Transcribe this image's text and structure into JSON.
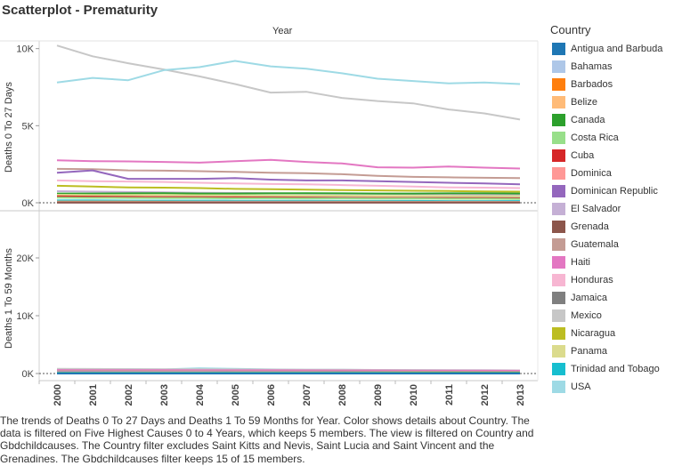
{
  "title": "Scatterplot - Prematurity",
  "column_header": "Year",
  "legend_title": "Country",
  "caption": "The trends of Deaths 0 To 27 Days and Deaths 1 To 59 Months for Year.  Color shows details about Country. The data is filtered on Five Highest Causes 0 to 4 Years, which keeps 5 members. The view is filtered on Country and Gbdchildcauses. The Country filter excludes Saint Kitts and Nevis, Saint Lucia and Saint Vincent and the Grenadines. The Gbdchildcauses filter keeps 15 of 15 members.",
  "countries": [
    {
      "name": "Antigua and Barbuda",
      "color": "#1f77b4"
    },
    {
      "name": "Bahamas",
      "color": "#aec7e8"
    },
    {
      "name": "Barbados",
      "color": "#ff7f0e"
    },
    {
      "name": "Belize",
      "color": "#ffbb78"
    },
    {
      "name": "Canada",
      "color": "#2ca02c"
    },
    {
      "name": "Costa Rica",
      "color": "#98df8a"
    },
    {
      "name": "Cuba",
      "color": "#d62728"
    },
    {
      "name": "Dominica",
      "color": "#ff9896"
    },
    {
      "name": "Dominican Republic",
      "color": "#9467bd"
    },
    {
      "name": "El Salvador",
      "color": "#c5b0d5"
    },
    {
      "name": "Grenada",
      "color": "#8c564b"
    },
    {
      "name": "Guatemala",
      "color": "#c49c94"
    },
    {
      "name": "Haiti",
      "color": "#e377c2"
    },
    {
      "name": "Honduras",
      "color": "#f7b6d2"
    },
    {
      "name": "Jamaica",
      "color": "#7f7f7f"
    },
    {
      "name": "Mexico",
      "color": "#c7c7c7"
    },
    {
      "name": "Nicaragua",
      "color": "#bcbd22"
    },
    {
      "name": "Panama",
      "color": "#dbdb8d"
    },
    {
      "name": "Trinidad and Tobago",
      "color": "#17becf"
    },
    {
      "name": "USA",
      "color": "#9edae5"
    }
  ],
  "chart_data": {
    "type": "line",
    "x": [
      2000,
      2001,
      2002,
      2003,
      2004,
      2005,
      2006,
      2007,
      2008,
      2009,
      2010,
      2011,
      2012,
      2013
    ],
    "x_tick_labels": [
      "2000",
      "2001",
      "2002",
      "2003",
      "2004",
      "2005",
      "2006",
      "2007",
      "2008",
      "2009",
      "2010",
      "2011",
      "2012",
      "2013"
    ],
    "xlabel": "Year",
    "panels": [
      {
        "ylabel": "Deaths 0 To 27 Days",
        "ylim": [
          0,
          10500
        ],
        "y_ticks": [
          0,
          5000,
          10000
        ],
        "y_tick_labels": [
          "0K",
          "5K",
          "10K"
        ],
        "series": [
          {
            "name": "Mexico",
            "values": [
              10200,
              9500,
              9050,
              8650,
              8200,
              7700,
              7150,
              7200,
              6800,
              6600,
              6450,
              6050,
              5800,
              5400
            ]
          },
          {
            "name": "USA",
            "values": [
              7800,
              8100,
              7950,
              8600,
              8800,
              9200,
              8850,
              8700,
              8400,
              8050,
              7900,
              7750,
              7800,
              7700
            ]
          },
          {
            "name": "Haiti",
            "values": [
              2750,
              2700,
              2680,
              2650,
              2600,
              2700,
              2780,
              2650,
              2550,
              2300,
              2280,
              2350,
              2280,
              2220
            ]
          },
          {
            "name": "Guatemala",
            "values": [
              2200,
              2180,
              2100,
              2080,
              2050,
              2000,
              1950,
              1920,
              1850,
              1750,
              1680,
              1650,
              1620,
              1600
            ]
          },
          {
            "name": "Dominican Republic",
            "values": [
              1950,
              2100,
              1550,
              1550,
              1550,
              1600,
              1500,
              1450,
              1450,
              1400,
              1350,
              1300,
              1250,
              1200
            ]
          },
          {
            "name": "Honduras",
            "values": [
              1450,
              1400,
              1380,
              1350,
              1300,
              1250,
              1220,
              1200,
              1150,
              1100,
              1050,
              1000,
              980,
              950
            ]
          },
          {
            "name": "Nicaragua",
            "values": [
              1100,
              1050,
              1000,
              980,
              950,
              900,
              880,
              850,
              820,
              800,
              780,
              760,
              740,
              720
            ]
          },
          {
            "name": "El Salvador",
            "values": [
              750,
              720,
              700,
              680,
              650,
              640,
              620,
              600,
              590,
              580,
              570,
              560,
              550,
              540
            ]
          },
          {
            "name": "Canada",
            "values": [
              600,
              600,
              610,
              620,
              600,
              600,
              610,
              620,
              610,
              600,
              600,
              610,
              610,
              600
            ]
          },
          {
            "name": "Panama",
            "values": [
              520,
              510,
              500,
              500,
              490,
              480,
              470,
              470,
              460,
              450,
              450,
              440,
              430,
              430
            ]
          },
          {
            "name": "Jamaica",
            "values": [
              400,
              390,
              380,
              370,
              360,
              350,
              350,
              340,
              330,
              320,
              320,
              310,
              300,
              300
            ]
          },
          {
            "name": "Cuba",
            "values": [
              420,
              400,
              380,
              370,
              360,
              350,
              340,
              330,
              320,
              320,
              310,
              300,
              300,
              290
            ]
          },
          {
            "name": "Costa Rica",
            "values": [
              330,
              320,
              310,
              300,
              300,
              290,
              290,
              280,
              280,
              270,
              270,
              260,
              260,
              250
            ]
          },
          {
            "name": "Trinidad and Tobago",
            "values": [
              150,
              150,
              140,
              140,
              140,
              130,
              130,
              130,
              120,
              120,
              120,
              110,
              110,
              110
            ]
          },
          {
            "name": "Belize",
            "values": [
              80,
              80,
              80,
              75,
              75,
              75,
              70,
              70,
              70,
              70,
              65,
              65,
              65,
              60
            ]
          },
          {
            "name": "Bahamas",
            "values": [
              60,
              60,
              58,
              58,
              56,
              56,
              55,
              55,
              54,
              54,
              52,
              52,
              50,
              50
            ]
          },
          {
            "name": "Barbados",
            "values": [
              40,
              40,
              38,
              38,
              36,
              36,
              35,
              35,
              34,
              34,
              33,
              33,
              32,
              32
            ]
          },
          {
            "name": "Antigua and Barbuda",
            "values": [
              10,
              10,
              10,
              10,
              10,
              10,
              10,
              10,
              10,
              10,
              10,
              10,
              10,
              10
            ]
          },
          {
            "name": "Dominica",
            "values": [
              12,
              12,
              11,
              11,
              11,
              10,
              10,
              10,
              10,
              10,
              9,
              9,
              9,
              9
            ]
          },
          {
            "name": "Grenada",
            "values": [
              15,
              15,
              14,
              14,
              14,
              13,
              13,
              13,
              12,
              12,
              12,
              11,
              11,
              11
            ]
          }
        ]
      },
      {
        "ylabel": "Deaths 1 To 59 Months",
        "ylim": [
          0,
          28000
        ],
        "y_ticks": [
          0,
          10000,
          20000
        ],
        "y_tick_labels": [
          "0K",
          "10K",
          "20K"
        ],
        "series": [
          {
            "name": "USA",
            "values": [
              650,
              700,
              750,
              700,
              900,
              800,
              700,
              650,
              650,
              600,
              580,
              560,
              550,
              540
            ]
          },
          {
            "name": "Mexico",
            "values": [
              800,
              780,
              760,
              740,
              720,
              700,
              680,
              660,
              640,
              620,
              600,
              580,
              560,
              540
            ]
          },
          {
            "name": "Haiti",
            "values": [
              600,
              590,
              580,
              570,
              560,
              560,
              550,
              540,
              530,
              520,
              510,
              500,
              490,
              480
            ]
          },
          {
            "name": "Guatemala",
            "values": [
              420,
              410,
              400,
              390,
              380,
              370,
              360,
              350,
              340,
              330,
              320,
              310,
              300,
              290
            ]
          },
          {
            "name": "Dominican Republic",
            "values": [
              250,
              240,
              230,
              220,
              210,
              200,
              200,
              190,
              180,
              170,
              160,
              150,
              150,
              140
            ]
          },
          {
            "name": "Honduras",
            "values": [
              200,
              195,
              190,
              185,
              180,
              175,
              170,
              165,
              160,
              155,
              150,
              145,
              140,
              135
            ]
          },
          {
            "name": "Canada",
            "values": [
              120,
              120,
              118,
              118,
              116,
              116,
              115,
              115,
              114,
              114,
              113,
              113,
              112,
              112
            ]
          },
          {
            "name": "Trinidad and Tobago",
            "values": [
              60,
              60,
              58,
              58,
              56,
              56,
              55,
              55,
              54,
              54,
              53,
              53,
              52,
              52
            ]
          },
          {
            "name": "Antigua and Barbuda",
            "values": [
              5,
              5,
              5,
              5,
              5,
              5,
              5,
              5,
              5,
              5,
              5,
              5,
              5,
              5
            ]
          }
        ]
      }
    ],
    "grid": false,
    "legend": "right"
  }
}
